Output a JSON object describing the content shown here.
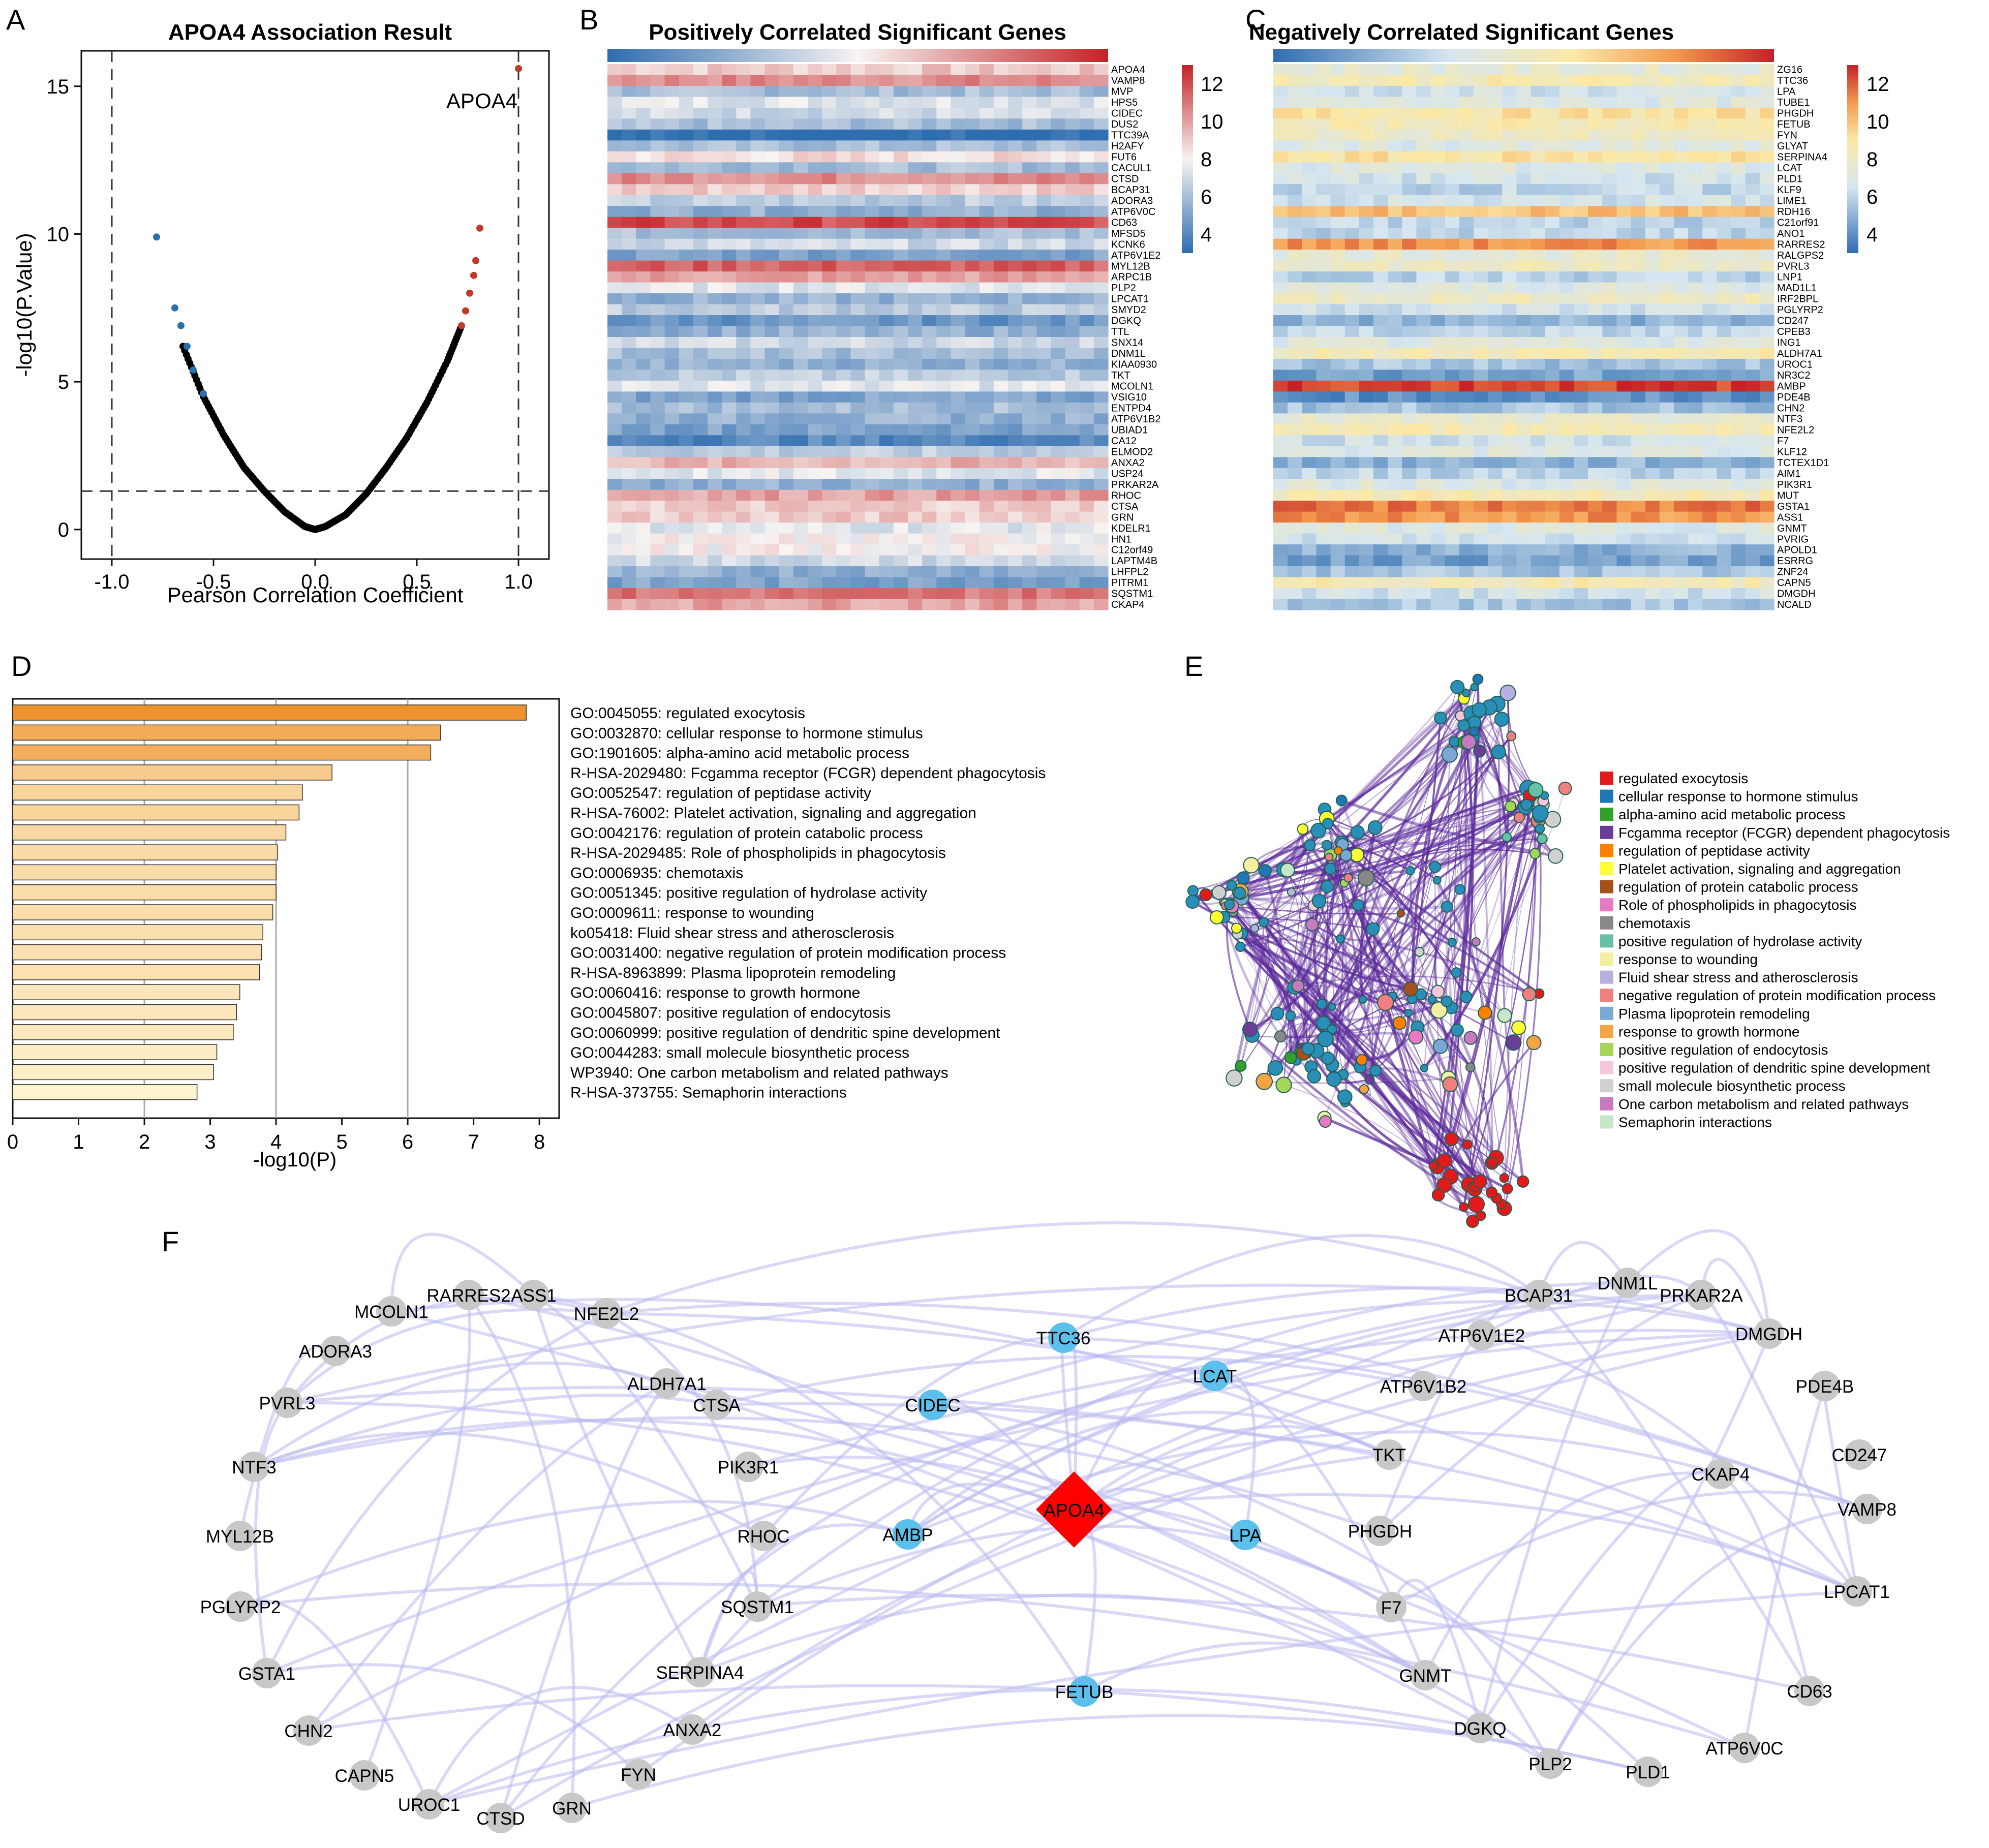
{
  "panel_letters": {
    "a": "A",
    "b": "B",
    "c": "C",
    "d": "D",
    "e": "E",
    "f": "F"
  },
  "colors": {
    "pos_red": "#c0392b",
    "neg_blue": "#2a6fb0",
    "bar_dark": "#f0922b",
    "bar_light": "#fdf3cf",
    "edge": "#5b2a9a",
    "apoa4": "#ff0000",
    "highlight": "#5bc0eb",
    "node_gray": "#c8c8c8"
  },
  "chart_data": [
    {
      "id": "A",
      "type": "scatter",
      "title": "APOA4 Association Result",
      "xlabel": "Pearson Correlation Coefficient",
      "ylabel": "-log10(P.Value)",
      "xlim": [
        -1.15,
        1.15
      ],
      "ylim": [
        -1,
        16.2
      ],
      "x_ticks": [
        -1.0,
        -0.5,
        0.0,
        0.5,
        1.0
      ],
      "x_tick_labels": [
        "-1.0",
        "-0.5",
        "0.0",
        "0.5",
        "1.0"
      ],
      "y_ticks": [
        0,
        5,
        10,
        15
      ],
      "y_tick_labels": [
        "0",
        "5",
        "10",
        "15"
      ],
      "threshold_x": [
        -1.0,
        1.0
      ],
      "threshold_y": 1.3,
      "curve_points": [
        [
          -0.65,
          6.2
        ],
        [
          -0.55,
          4.5
        ],
        [
          -0.45,
          3.2
        ],
        [
          -0.35,
          2.1
        ],
        [
          -0.25,
          1.3
        ],
        [
          -0.15,
          0.6
        ],
        [
          -0.05,
          0.1
        ],
        [
          0.0,
          0.0
        ],
        [
          0.05,
          0.1
        ],
        [
          0.15,
          0.5
        ],
        [
          0.25,
          1.2
        ],
        [
          0.35,
          2.1
        ],
        [
          0.45,
          3.1
        ],
        [
          0.55,
          4.3
        ],
        [
          0.65,
          5.7
        ],
        [
          0.72,
          6.9
        ]
      ],
      "positive_points": [
        [
          0.72,
          6.9
        ],
        [
          0.74,
          7.4
        ],
        [
          0.76,
          8.0
        ],
        [
          0.78,
          8.6
        ],
        [
          0.79,
          9.1
        ],
        [
          0.81,
          10.2
        ],
        [
          1.0,
          15.6
        ]
      ],
      "negative_points": [
        [
          -0.55,
          4.6
        ],
        [
          -0.6,
          5.4
        ],
        [
          -0.63,
          6.2
        ],
        [
          -0.66,
          6.9
        ],
        [
          -0.69,
          7.5
        ],
        [
          -0.78,
          9.9
        ]
      ],
      "annotation": "APOA4"
    },
    {
      "id": "B",
      "type": "heatmap",
      "title": "Positively Correlated Significant Genes",
      "genes": [
        "APOA4",
        "VAMP8",
        "MVP",
        "HPS5",
        "CIDEC",
        "DUS2",
        "TTC39A",
        "H2AFY",
        "FUT6",
        "CACUL1",
        "CTSD",
        "BCAP31",
        "ADORA3",
        "ATP6V0C",
        "CD63",
        "MFSD5",
        "KCNK6",
        "ATP6V1E2",
        "MYL12B",
        "ARPC1B",
        "PLP2",
        "LPCAT1",
        "SMYD2",
        "DGKQ",
        "TTL",
        "SNX14",
        "DNM1L",
        "KIAA0930",
        "TKT",
        "MCOLN1",
        "VSIG10",
        "ENTPD4",
        "ATP6V1B2",
        "UBIAD1",
        "CA12",
        "ELMOD2",
        "ANXA2",
        "USP24",
        "PRKAR2A",
        "RHOC",
        "CTSA",
        "GRN",
        "KDELR1",
        "HN1",
        "C12orf49",
        "LAPTM4B",
        "LHFPL2",
        "PITRM1",
        "SQSTM1",
        "CKAP4"
      ],
      "levels": [
        9.0,
        10.5,
        6.0,
        7.5,
        7.0,
        6.0,
        3.0,
        6.0,
        8.5,
        6.0,
        10.5,
        9.0,
        6.5,
        5.5,
        12.0,
        6.0,
        7.0,
        5.0,
        11.5,
        10.0,
        7.5,
        5.5,
        6.5,
        4.5,
        5.5,
        7.0,
        6.0,
        5.5,
        6.5,
        7.5,
        5.0,
        6.0,
        5.5,
        5.0,
        4.0,
        6.5,
        9.5,
        7.5,
        5.5,
        10.0,
        9.0,
        9.0,
        7.5,
        8.0,
        8.0,
        7.0,
        5.5,
        5.0,
        11.0,
        10.0
      ],
      "legend_ticks": [
        4,
        6,
        8,
        10,
        12
      ],
      "legend_labels": [
        "4",
        "6",
        "8",
        "10",
        "12"
      ],
      "value_range": [
        3,
        13
      ]
    },
    {
      "id": "C",
      "type": "heatmap",
      "title": "Negatively Correlated Significant Genes",
      "genes": [
        "ZG16",
        "TTC36",
        "LPA",
        "TUBE1",
        "PHGDH",
        "FETUB",
        "FYN",
        "GLYAT",
        "SERPINA4",
        "LCAT",
        "PLD1",
        "KLF9",
        "LIME1",
        "RDH16",
        "C21orf91",
        "ANO1",
        "RARRES2",
        "RALGPS2",
        "PVRL3",
        "LNP1",
        "MAD1L1",
        "IRF2BPL",
        "PGLYRP2",
        "CD247",
        "CPEB3",
        "ING1",
        "ALDH7A1",
        "UROC1",
        "NR3C2",
        "AMBP",
        "PDE4B",
        "CHN2",
        "NTF3",
        "NFE2L2",
        "F7",
        "KLF12",
        "TCTEX1D1",
        "AIM1",
        "PIK3R1",
        "MUT",
        "GSTA1",
        "ASS1",
        "GNMT",
        "PVRIG",
        "APOLD1",
        "ESRRG",
        "ZNF24",
        "CAPN5",
        "DMGDH",
        "NCALD"
      ],
      "levels": [
        7.5,
        8.5,
        6.5,
        7.0,
        9.0,
        8.5,
        8.0,
        7.0,
        9.0,
        7.0,
        6.5,
        6.0,
        6.5,
        10.0,
        6.0,
        6.0,
        11.0,
        7.5,
        8.0,
        6.0,
        7.0,
        8.0,
        6.5,
        5.0,
        6.0,
        7.0,
        8.5,
        5.5,
        4.5,
        12.5,
        4.0,
        5.5,
        7.5,
        8.5,
        6.5,
        7.0,
        5.0,
        6.0,
        7.0,
        8.5,
        11.5,
        11.0,
        7.0,
        6.5,
        5.0,
        4.5,
        5.5,
        8.5,
        6.5,
        5.5
      ],
      "legend_ticks": [
        4,
        6,
        8,
        10,
        12
      ],
      "legend_labels": [
        "4",
        "6",
        "8",
        "10",
        "12"
      ],
      "value_range": [
        3,
        13
      ]
    },
    {
      "id": "D",
      "type": "bar",
      "xlabel": "-log10(P)",
      "xlim": [
        0,
        8.3
      ],
      "x_ticks": [
        0,
        1,
        2,
        3,
        4,
        5,
        6,
        7,
        8
      ],
      "x_tick_labels": [
        "0",
        "1",
        "2",
        "3",
        "4",
        "5",
        "6",
        "7",
        "8"
      ],
      "gridlines": [
        2,
        4,
        6
      ],
      "categories": [
        "GO:0045055: regulated exocytosis",
        "GO:0032870: cellular response to hormone stimulus",
        "GO:1901605: alpha-amino acid metabolic process",
        "R-HSA-2029480: Fcgamma receptor (FCGR) dependent phagocytosis",
        "GO:0052547: regulation of peptidase activity",
        "R-HSA-76002: Platelet activation, signaling and aggregation",
        "GO:0042176: regulation of protein catabolic process",
        "R-HSA-2029485: Role of phospholipids in phagocytosis",
        "GO:0006935: chemotaxis",
        "GO:0051345: positive regulation of hydrolase activity",
        "GO:0009611: response to wounding",
        "ko05418: Fluid shear stress and atherosclerosis",
        "GO:0031400: negative regulation of protein modification process",
        "R-HSA-8963899: Plasma lipoprotein remodeling",
        "GO:0060416: response to growth hormone",
        "GO:0045807: positive regulation of endocytosis",
        "GO:0060999: positive regulation of dendritic spine development",
        "GO:0044283: small molecule biosynthetic process",
        "WP3940: One carbon metabolism and related pathways",
        "R-HSA-373755: Semaphorin interactions"
      ],
      "values": [
        7.8,
        6.5,
        6.35,
        4.85,
        4.4,
        4.35,
        4.15,
        4.02,
        4.0,
        4.0,
        3.95,
        3.8,
        3.78,
        3.75,
        3.45,
        3.4,
        3.35,
        3.1,
        3.05,
        2.8
      ]
    },
    {
      "id": "E",
      "type": "network",
      "legend": [
        {
          "label": "regulated exocytosis",
          "color": "#e31a1c"
        },
        {
          "label": "cellular response to hormone stimulus",
          "color": "#1f78b4"
        },
        {
          "label": "alpha-amino acid metabolic process",
          "color": "#33a02c"
        },
        {
          "label": "Fcgamma receptor (FCGR) dependent phagocytosis",
          "color": "#6a3d9a"
        },
        {
          "label": "regulation of peptidase activity",
          "color": "#ff7f00"
        },
        {
          "label": "Platelet activation, signaling and aggregation",
          "color": "#ffff33"
        },
        {
          "label": "regulation of protein catabolic process",
          "color": "#a6511d"
        },
        {
          "label": "Role of phospholipids in phagocytosis",
          "color": "#e77bc1"
        },
        {
          "label": "chemotaxis",
          "color": "#888888"
        },
        {
          "label": "positive regulation of hydrolase activity",
          "color": "#66c2a5"
        },
        {
          "label": "response to wounding",
          "color": "#f2efa0"
        },
        {
          "label": "Fluid shear stress and atherosclerosis",
          "color": "#b8b0e0"
        },
        {
          "label": "negative regulation of protein modification process",
          "color": "#f08080"
        },
        {
          "label": "Plasma lipoprotein remodeling",
          "color": "#7ba7d6"
        },
        {
          "label": "response to growth hormone",
          "color": "#f4a442"
        },
        {
          "label": "positive regulation of endocytosis",
          "color": "#a5d65a"
        },
        {
          "label": "positive regulation of dendritic spine development",
          "color": "#f6c6dd"
        },
        {
          "label": "small molecule biosynthetic process",
          "color": "#d0d0d0"
        },
        {
          "label": "One carbon metabolism and related pathways",
          "color": "#c87ac0"
        },
        {
          "label": "Semaphorin interactions",
          "color": "#c6e8c6"
        }
      ]
    }
  ],
  "network_f": {
    "center": "APOA4",
    "highlighted": [
      "TTC36",
      "LCAT",
      "CIDEC",
      "AMBP",
      "LPA",
      "FETUB"
    ],
    "gray": [
      "RARRES2",
      "ASS1",
      "MCOLN1",
      "NFE2L2",
      "ADORA3",
      "ALDH7A1",
      "PVRL3",
      "CTSA",
      "NTF3",
      "PIK3R1",
      "MYL12B",
      "RHOC",
      "PGLYRP2",
      "SQSTM1",
      "GSTA1",
      "SERPINA4",
      "CHN2",
      "ANXA2",
      "CAPN5",
      "FYN",
      "UROC1",
      "GRN",
      "CTSD",
      "BCAP31",
      "DNM1L",
      "PRKAR2A",
      "ATP6V1E2",
      "DMGDH",
      "ATP6V1B2",
      "PDE4B",
      "TKT",
      "CD247",
      "CKAP4",
      "VAMP8",
      "PHGDH",
      "LPCAT1",
      "F7",
      "GNMT",
      "CD63",
      "DGKQ",
      "ATP6V0C",
      "PLP2",
      "PLD1"
    ]
  }
}
